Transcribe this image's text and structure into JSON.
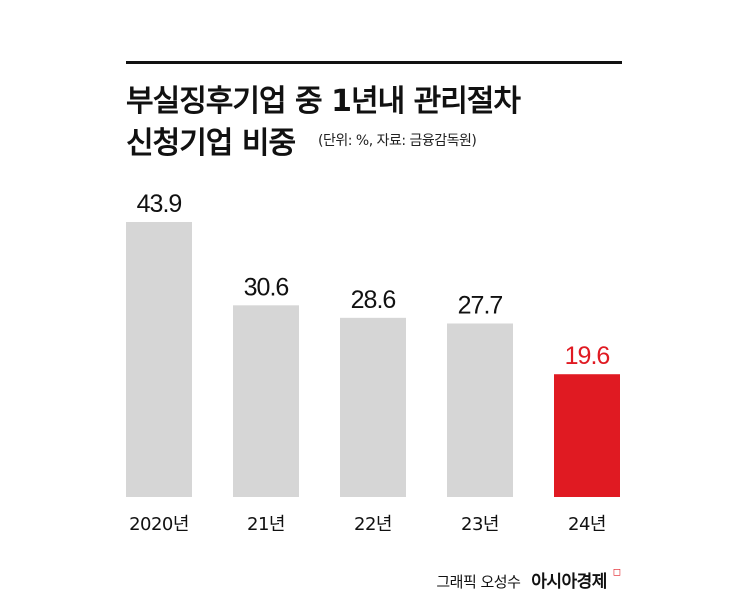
{
  "title_line1": "부실징후기업 중 1년내 관리절차",
  "title_line2": "신청기업 비중",
  "subtitle": "(단위: %, 자료: 금융감독원)",
  "credit": {
    "author": "그래픽 오성수",
    "brand": "아시아경제",
    "mark": "◻"
  },
  "colors": {
    "bar": "#d6d6d6",
    "highlight_bar": "#e01a22",
    "label": "#111111",
    "highlight_label": "#e01a22"
  },
  "chart_data": {
    "type": "bar",
    "categories": [
      "2020년",
      "21년",
      "22년",
      "23년",
      "24년"
    ],
    "values": [
      43.9,
      30.6,
      28.6,
      27.7,
      19.6
    ],
    "value_labels": [
      "43.9",
      "30.6",
      "28.6",
      "27.7",
      "19.6"
    ],
    "highlight_index": 4,
    "title": "부실징후기업 중 1년내 관리절차 신청기업 비중",
    "ylim": [
      0,
      43.9
    ],
    "grid": false,
    "legend": "none"
  }
}
